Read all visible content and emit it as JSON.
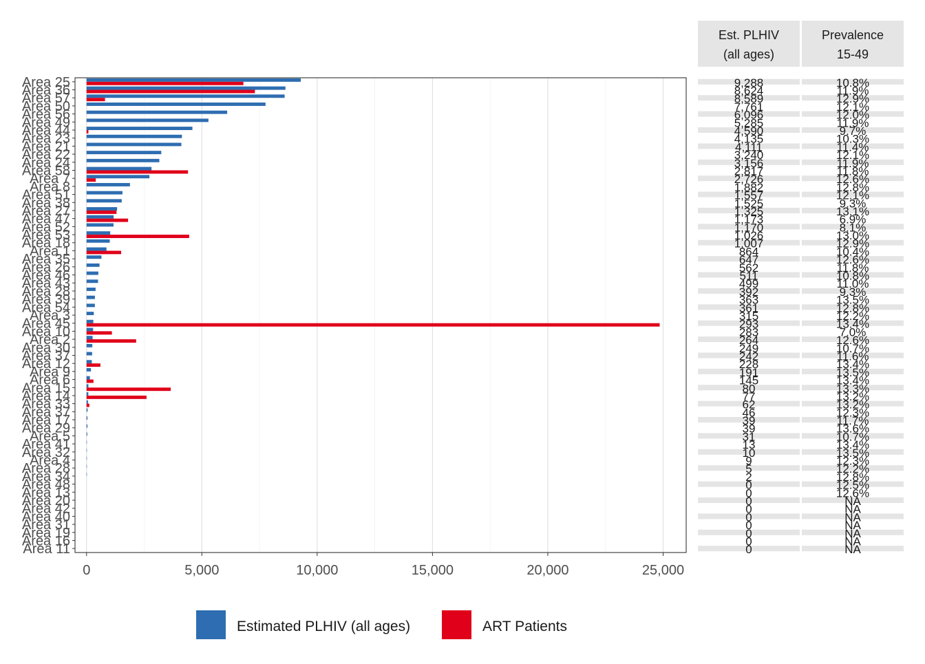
{
  "chart_data": {
    "type": "bar",
    "orientation": "horizontal",
    "title": "",
    "xlabel": "",
    "ylabel": "",
    "xlim": [
      -500,
      26000
    ],
    "x_ticks": [
      0,
      5000,
      10000,
      15000,
      20000,
      25000
    ],
    "x_tick_labels": [
      "0",
      "5,000",
      "10,000",
      "15,000",
      "20,000",
      "25,000"
    ],
    "grid": true,
    "legend_position": "bottom",
    "colors": {
      "plhiv": "#2E6DB1",
      "art": "#E0001A",
      "table_bg": "#E5E5E5"
    },
    "categories": [
      "Area 25",
      "Area 36",
      "Area 57",
      "Area 50",
      "Area 56",
      "Area 49",
      "Area 44",
      "Area 23",
      "Area 21",
      "Area 22",
      "Area 24",
      "Area 58",
      "Area 7",
      "Area 8",
      "Area 51",
      "Area 38",
      "Area 27",
      "Area 47",
      "Area 52",
      "Area 53",
      "Area 18",
      "Area 1",
      "Area 35",
      "Area 26",
      "Area 46",
      "Area 43",
      "Area 28",
      "Area 39",
      "Area 54",
      "Area 3",
      "Area 45",
      "Area 10",
      "Area 2",
      "Area 30",
      "Area 37",
      "Area 12",
      "Area 9",
      "Area 6",
      "Area 15",
      "Area 14",
      "Area 33",
      "Area 37",
      "Area 17",
      "Area 29",
      "Area 5",
      "Area 41",
      "Area 32",
      "Area 4",
      "Area 28",
      "Area 34",
      "Area 48",
      "Area 13",
      "Area 20",
      "Area 42",
      "Area 40",
      "Area 31",
      "Area 19",
      "Area 16",
      "Area 11"
    ],
    "series": [
      {
        "name": "Estimated PLHIV (all ages)",
        "values": [
          9288,
          8624,
          8589,
          7761,
          6096,
          5285,
          4590,
          4135,
          4111,
          3240,
          3156,
          2817,
          2726,
          1882,
          1557,
          1525,
          1325,
          1173,
          1170,
          1026,
          1007,
          864,
          647,
          562,
          511,
          499,
          392,
          363,
          361,
          315,
          293,
          283,
          264,
          249,
          242,
          228,
          191,
          145,
          80,
          77,
          62,
          46,
          39,
          39,
          31,
          13,
          10,
          9,
          5,
          2,
          0,
          0,
          0,
          0,
          0,
          0,
          0,
          0,
          0
        ]
      },
      {
        "name": "ART Patients",
        "values": [
          6800,
          7300,
          800,
          0,
          0,
          0,
          80,
          0,
          0,
          0,
          0,
          4400,
          400,
          0,
          0,
          0,
          1300,
          1800,
          0,
          4450,
          0,
          1500,
          0,
          0,
          0,
          0,
          0,
          0,
          0,
          0,
          24850,
          1100,
          2150,
          0,
          0,
          600,
          0,
          300,
          3650,
          2600,
          120,
          0,
          0,
          0,
          0,
          0,
          0,
          0,
          0,
          0,
          0,
          0,
          0,
          0,
          0,
          0,
          0,
          0,
          0
        ]
      }
    ],
    "table": {
      "headers": [
        {
          "line1": "Est. PLHIV",
          "line2": "(all ages)"
        },
        {
          "line1": "Prevalence",
          "line2": "15-49"
        }
      ],
      "est_plhiv": [
        "9,288",
        "8,624",
        "8,589",
        "7,761",
        "6,096",
        "5,285",
        "4,590",
        "4,135",
        "4,111",
        "3,240",
        "3,156",
        "2,817",
        "2,726",
        "1,882",
        "1,557",
        "1,525",
        "1,325",
        "1,173",
        "1,170",
        "1,026",
        "1,007",
        "864",
        "647",
        "562",
        "511",
        "499",
        "392",
        "363",
        "361",
        "315",
        "293",
        "283",
        "264",
        "249",
        "242",
        "228",
        "191",
        "145",
        "80",
        "77",
        "62",
        "46",
        "39",
        "39",
        "31",
        "13",
        "10",
        "9",
        "5",
        "2",
        "0",
        "0",
        "0",
        "0",
        "0",
        "0",
        "0",
        "0",
        "0"
      ],
      "prevalence": [
        "10.8%",
        "11.9%",
        "12.9%",
        "12.1%",
        "12.0%",
        "11.9%",
        "9.7%",
        "10.3%",
        "11.4%",
        "12.1%",
        "11.9%",
        "11.8%",
        "12.6%",
        "12.8%",
        "12.1%",
        "9.3%",
        "13.1%",
        "6.9%",
        "8.1%",
        "13.0%",
        "12.9%",
        "10.4%",
        "12.6%",
        "11.8%",
        "10.8%",
        "11.0%",
        "9.3%",
        "13.5%",
        "12.8%",
        "12.2%",
        "13.4%",
        "7.0%",
        "12.6%",
        "10.7%",
        "11.6%",
        "13.4%",
        "13.5%",
        "13.4%",
        "13.3%",
        "13.2%",
        "13.2%",
        "12.3%",
        "11.7%",
        "13.6%",
        "10.7%",
        "13.4%",
        "13.5%",
        "12.3%",
        "12.2%",
        "12.8%",
        "12.5%",
        "12.6%",
        "NA",
        "NA",
        "NA",
        "NA",
        "NA",
        "NA",
        "NA"
      ]
    }
  }
}
